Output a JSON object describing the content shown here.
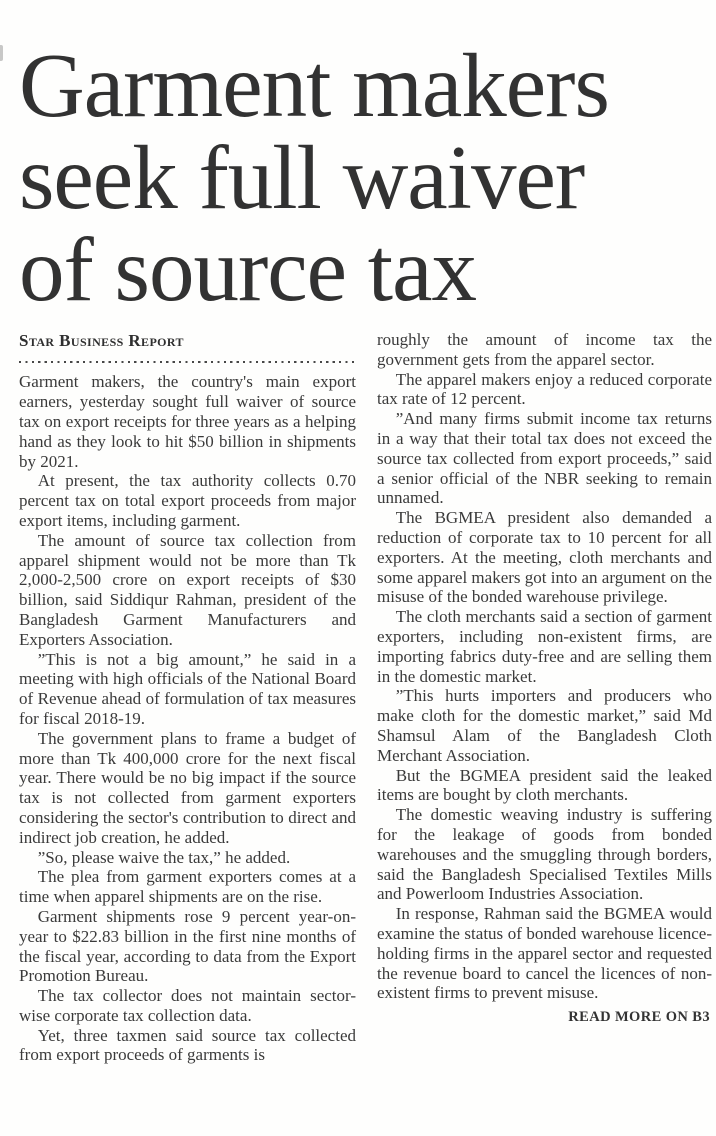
{
  "page": {
    "background": "#fefefd",
    "ink_color": "#3a3a3a",
    "headline_color": "#323232"
  },
  "article": {
    "headline": "Garment makers seek full waiver of source tax",
    "byline": "Star Business Report",
    "read_more": "READ MORE ON B3",
    "columns": {
      "left": [
        "Garment makers, the country's main export earners, yesterday sought full waiver of source tax on export receipts for three years as a helping hand as they look to hit $50 billion in shipments by 2021.",
        "At present, the tax authority collects 0.70 percent tax on total export proceeds from major export items, including garment.",
        "The amount of source tax collection from apparel shipment would not be more than Tk 2,000-2,500 crore on export receipts of $30 billion, said Siddiqur Rahman, president of the Bangladesh Garment Manufacturers and Exporters Association.",
        "”This is not a big amount,” he said in a meeting with high officials of the National Board of Revenue ahead of formulation of tax measures for fiscal 2018-19.",
        "The government plans to frame a budget of more than Tk 400,000 crore for the next fiscal year. There would be no big impact if the source tax is not collected from garment exporters considering the sector's contribution to direct and indirect job creation, he added.",
        "”So, please waive the tax,” he added.",
        "The plea from garment exporters comes at a time when apparel shipments are on the rise.",
        "Garment shipments rose 9 percent year-on-year to $22.83 billion in the first nine months of the fiscal year, according to data from the Export Promotion Bureau.",
        "The tax collector does not maintain sector-wise corporate tax collection data.",
        "Yet, three taxmen said source tax collected from export proceeds of garments is"
      ],
      "right": [
        "roughly the amount of income tax the government gets from the apparel sector.",
        "The apparel makers enjoy a reduced corporate tax rate of 12 percent.",
        "”And many firms submit income tax returns in a way that their total tax does not exceed the source tax collected from export proceeds,” said a senior official of the NBR seeking to remain unnamed.",
        "The BGMEA president also demanded a reduction of corporate tax to 10 percent for all exporters. At the meeting, cloth merchants and some apparel makers got into an argument on the misuse of the bonded warehouse privilege.",
        "The cloth merchants said a section of garment exporters, including non-existent firms, are importing fabrics duty-free and are selling them in the domestic market.",
        "”This hurts importers and producers who make cloth for the domestic market,” said Md Shamsul Alam of the Bangladesh Cloth Merchant Association.",
        "But the BGMEA president said the leaked items are bought by cloth merchants.",
        "The domestic weaving industry is suffering for the leakage of goods from bonded warehouses and the smuggling through borders, said the Bangladesh Specialised Textiles Mills and Powerloom Industries Association.",
        "In response, Rahman said the BGMEA would examine the status of bonded warehouse licence-holding firms in the apparel sector and requested the revenue board to cancel the licences of non-existent firms to prevent misuse."
      ]
    }
  }
}
